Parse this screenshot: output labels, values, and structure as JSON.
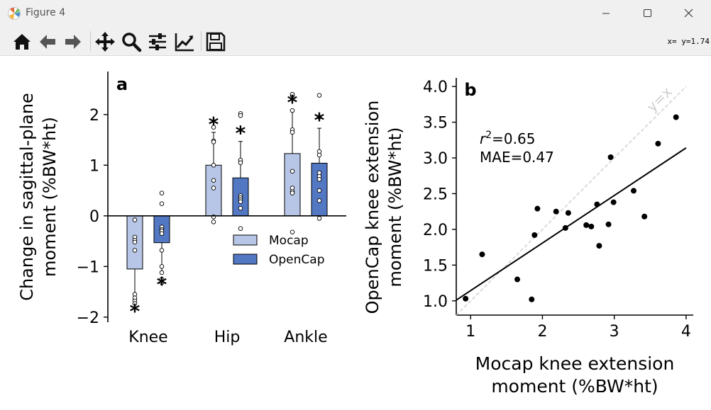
{
  "window": {
    "title": "Figure 4"
  },
  "toolbar": {
    "buttons": [
      {
        "name": "home-button",
        "icon": "home-icon"
      },
      {
        "name": "back-button",
        "icon": "arrow-left-icon"
      },
      {
        "name": "forward-button",
        "icon": "arrow-right-icon"
      },
      {
        "name": "pan-button",
        "icon": "move-icon"
      },
      {
        "name": "zoom-button",
        "icon": "magnifier-icon"
      },
      {
        "name": "subplots-button",
        "icon": "sliders-icon"
      },
      {
        "name": "edit-axes-button",
        "icon": "line-chart-icon"
      },
      {
        "name": "save-button",
        "icon": "floppy-disk-icon"
      }
    ],
    "coords": "x= y=1.74"
  },
  "chart_data": [
    {
      "type": "bar",
      "panel_label": "a",
      "title": "",
      "xlabel": "",
      "ylabel_lines": [
        "Change in sagittal-plane",
        "moment (%BW*ht)"
      ],
      "categories": [
        "Knee",
        "Hip",
        "Ankle"
      ],
      "ylim": [
        -2.1,
        2.85
      ],
      "yticks": [
        -2,
        -1,
        0,
        1,
        2
      ],
      "legend_position": "lower-right",
      "colors": {
        "Mocap": "#b7c6e6",
        "OpenCap": "#5277c3"
      },
      "significance_marker": "*",
      "series": [
        {
          "name": "Mocap",
          "values": [
            -1.05,
            1.0,
            1.23
          ],
          "error": [
            {
              "low": -1.65,
              "high": -1.05
            },
            {
              "low": 1.0,
              "high": 1.65
            },
            {
              "low": 1.23,
              "high": 2.08
            }
          ],
          "significant": [
            true,
            true,
            true
          ],
          "points": [
            [
              -0.08,
              -0.42,
              -0.48,
              -0.52,
              -0.68,
              -1.55,
              -1.62,
              -1.68,
              -1.73
            ],
            [
              1.75,
              1.48,
              1.46,
              1.0,
              0.7,
              0.55,
              -0.02,
              -0.12
            ],
            [
              2.38,
              2.4,
              2.08,
              1.7,
              1.65,
              0.88,
              0.55,
              0.48,
              0.45,
              -0.32
            ]
          ]
        },
        {
          "name": "OpenCap",
          "values": [
            -0.53,
            0.75,
            1.04
          ],
          "error": [
            {
              "low": -1.12,
              "high": -0.53
            },
            {
              "low": 0.75,
              "high": 1.47
            },
            {
              "low": 1.04,
              "high": 1.73
            }
          ],
          "significant": [
            true,
            true,
            true
          ],
          "points": [
            [
              0.45,
              0.24,
              -0.22,
              -0.27,
              -0.3,
              -0.35,
              -0.68,
              -1.0,
              -1.12,
              -1.25,
              -1.32
            ],
            [
              2.02,
              1.98,
              1.1,
              1.05,
              0.4,
              0.36,
              0.32,
              0.28,
              0.15,
              -0.25
            ],
            [
              2.38,
              1.95,
              1.27,
              1.2,
              0.85,
              0.78,
              0.72,
              0.5,
              0.3,
              -0.05
            ]
          ]
        }
      ]
    },
    {
      "type": "scatter",
      "panel_label": "b",
      "title": "",
      "xlabel_lines": [
        "Mocap knee extension",
        "moment (%BW*ht)"
      ],
      "ylabel_lines": [
        "OpenCap knee extension",
        "moment (%BW*ht)"
      ],
      "xlim": [
        0.8,
        4.1
      ],
      "ylim": [
        0.8,
        4.12
      ],
      "xticks": [
        1,
        2,
        3,
        4
      ],
      "yticks": [
        1.0,
        1.5,
        2.0,
        2.5,
        3.0,
        3.5,
        4.0
      ],
      "identity_label": "y=x",
      "fit_line": {
        "x": [
          0.8,
          4.0
        ],
        "y": [
          1.01,
          3.14
        ]
      },
      "annotation": {
        "r2_prefix": "r",
        "r2_superscript": "2",
        "r2_value": "=0.65",
        "mae": "MAE=0.47"
      },
      "points": {
        "x": [
          0.93,
          1.16,
          1.65,
          1.85,
          1.89,
          1.93,
          2.19,
          2.32,
          2.36,
          2.61,
          2.68,
          2.76,
          2.79,
          2.92,
          2.95,
          2.99,
          3.27,
          3.42,
          3.61,
          3.86
        ],
        "y": [
          1.03,
          1.65,
          1.3,
          1.02,
          1.92,
          2.29,
          2.25,
          2.02,
          2.23,
          2.06,
          2.04,
          2.35,
          1.77,
          2.07,
          3.01,
          2.38,
          2.54,
          2.18,
          3.2,
          3.57
        ]
      }
    }
  ]
}
